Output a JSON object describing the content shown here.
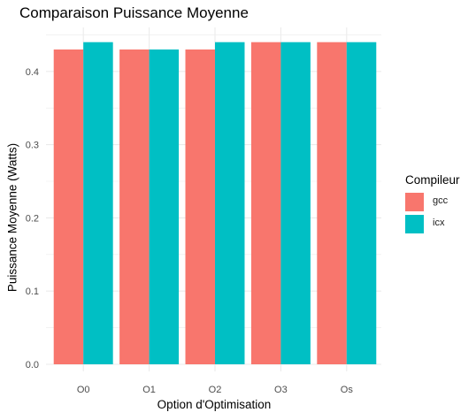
{
  "colors": {
    "gcc": "#f8766d",
    "icx": "#00bfc4",
    "grid": "#ebebeb",
    "axis_text": "#4d4d4d"
  },
  "legend": {
    "title": "Compileur",
    "items": [
      {
        "label": "gcc",
        "color": "#f8766d"
      },
      {
        "label": "icx",
        "color": "#00bfc4"
      }
    ]
  },
  "chart_data": {
    "type": "bar",
    "title": "Comparaison Puissance Moyenne",
    "xlabel": "Option d'Optimisation",
    "ylabel": "Puissance Moyenne (Watts)",
    "categories": [
      "O0",
      "O1",
      "O2",
      "O3",
      "Os"
    ],
    "series": [
      {
        "name": "gcc",
        "values": [
          0.43,
          0.43,
          0.43,
          0.44,
          0.44
        ]
      },
      {
        "name": "icx",
        "values": [
          0.44,
          0.43,
          0.44,
          0.44,
          0.44
        ]
      }
    ],
    "ylim": [
      0,
      0.462
    ],
    "yticks": [
      0.0,
      0.1,
      0.2,
      0.3,
      0.4
    ],
    "ytick_labels": [
      "0.0",
      "0.1",
      "0.2",
      "0.3",
      "0.4"
    ],
    "grid": true,
    "legend_position": "right"
  }
}
